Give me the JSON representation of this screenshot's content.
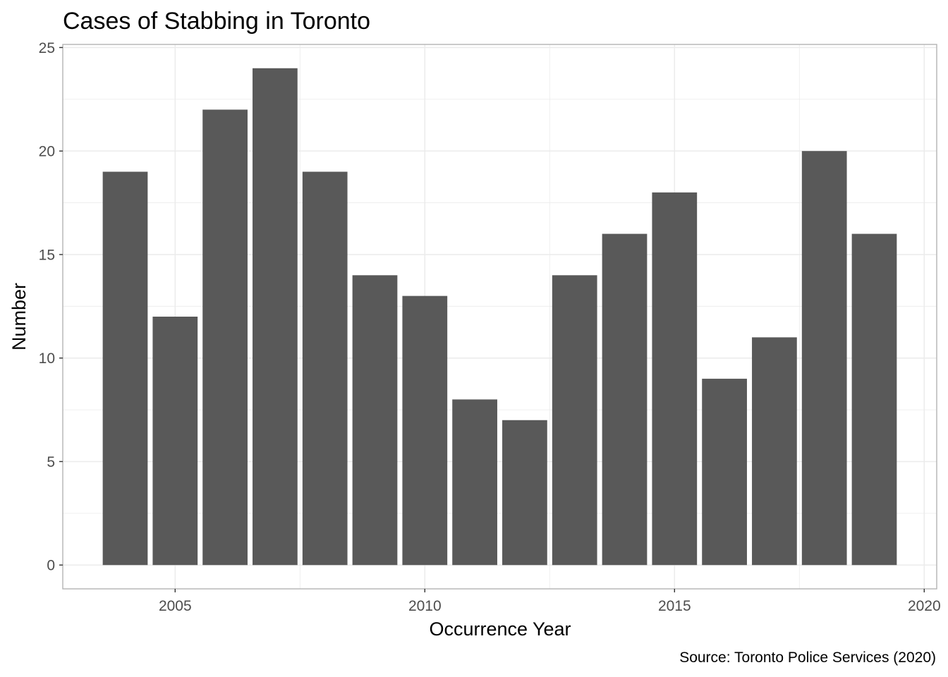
{
  "chart_data": {
    "type": "bar",
    "title": "Cases of Stabbing in Toronto",
    "xlabel": "Occurrence Year",
    "ylabel": "Number",
    "caption": "Source: Toronto Police Services (2020)",
    "x": [
      2004,
      2005,
      2006,
      2007,
      2008,
      2009,
      2010,
      2011,
      2012,
      2013,
      2014,
      2015,
      2016,
      2017,
      2018,
      2019
    ],
    "values": [
      19,
      12,
      22,
      24,
      19,
      14,
      13,
      8,
      7,
      14,
      16,
      18,
      9,
      11,
      20,
      16
    ],
    "xlim": [
      2002.75,
      2020.25
    ],
    "ylim": [
      -1.15,
      25.15
    ],
    "xticks": [
      "2005",
      "2010",
      "2015",
      "2020"
    ],
    "yticks": [
      "0",
      "5",
      "10",
      "15",
      "20",
      "25"
    ],
    "grid": true,
    "bar_color": "#595959",
    "panel_border_color": "#b3b3b3",
    "grid_color": "#ebebeb"
  }
}
